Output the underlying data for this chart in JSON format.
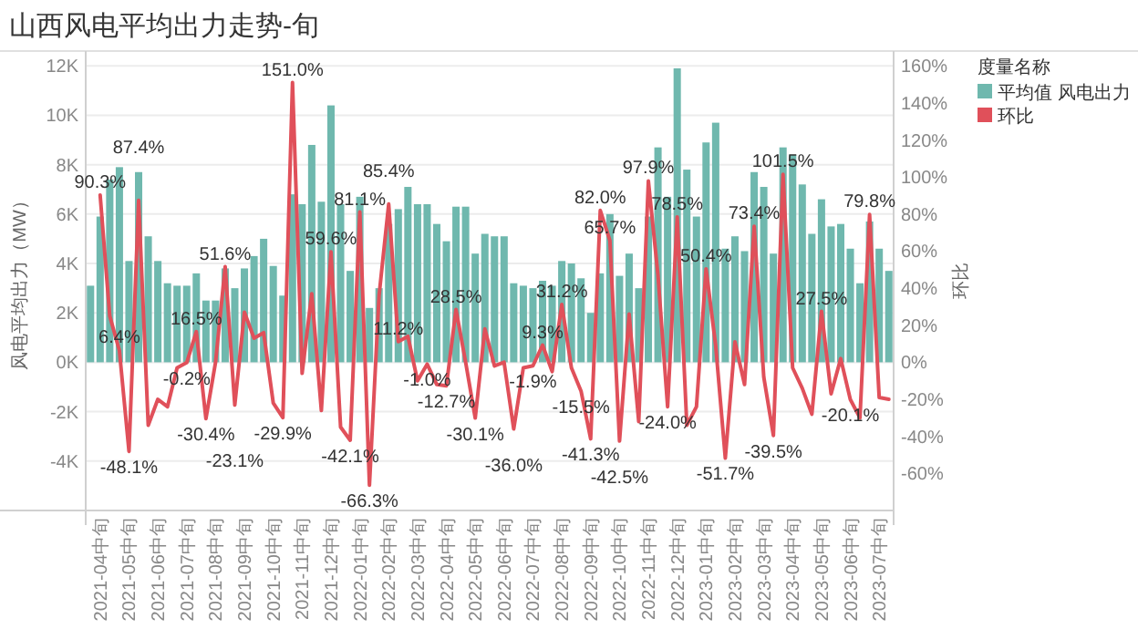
{
  "chart_data": {
    "type": "bar",
    "title": "山西风电平均出力走势-旬",
    "ylabel": "风电平均出力（MW）",
    "y2label": "环比",
    "legend_title": "度量名称",
    "legend": "top right",
    "grid": "y",
    "categories": [
      null,
      "2021-04中旬",
      null,
      null,
      "2021-05中旬",
      null,
      null,
      "2021-06中旬",
      null,
      null,
      "2021-07中旬",
      null,
      null,
      "2021-08中旬",
      null,
      null,
      "2021-09中旬",
      null,
      null,
      "2021-10中旬",
      null,
      null,
      "2021-11中旬",
      null,
      null,
      "2021-12中旬",
      null,
      null,
      "2022-01中旬",
      null,
      null,
      "2022-02中旬",
      null,
      null,
      "2022-03中旬",
      null,
      null,
      "2022-04中旬",
      null,
      null,
      "2022-05中旬",
      null,
      null,
      "2022-06中旬",
      null,
      null,
      "2022-07中旬",
      null,
      null,
      "2022-08中旬",
      null,
      null,
      "2022-09中旬",
      null,
      null,
      "2022-10中旬",
      null,
      null,
      "2022-11中旬",
      null,
      null,
      "2022-12中旬",
      null,
      null,
      "2023-01中旬",
      null,
      null,
      "2023-02中旬",
      null,
      null,
      "2023-03中旬",
      null,
      null,
      "2023-04中旬",
      null,
      null,
      "2023-05中旬",
      null,
      null,
      "2023-06中旬",
      null,
      null,
      "2023-07中旬",
      null
    ],
    "ylim": [
      -6000,
      12600
    ],
    "yticks": [
      {
        "value": -4000,
        "label": "-4K"
      },
      {
        "value": -2000,
        "label": "-2K"
      },
      {
        "value": 0,
        "label": "0K"
      },
      {
        "value": 2000,
        "label": "2K"
      },
      {
        "value": 4000,
        "label": "4K"
      },
      {
        "value": 6000,
        "label": "6K"
      },
      {
        "value": 8000,
        "label": "8K"
      },
      {
        "value": 10000,
        "label": "10K"
      },
      {
        "value": 12000,
        "label": "12K"
      }
    ],
    "y2lim": [
      -80,
      168
    ],
    "y2ticks": [
      {
        "value": -60,
        "label": "-60%"
      },
      {
        "value": -40,
        "label": "-40%"
      },
      {
        "value": -20,
        "label": "-20%"
      },
      {
        "value": 0,
        "label": "0%"
      },
      {
        "value": 20,
        "label": "20%"
      },
      {
        "value": 40,
        "label": "40%"
      },
      {
        "value": 60,
        "label": "60%"
      },
      {
        "value": 80,
        "label": "80%"
      },
      {
        "value": 100,
        "label": "100%"
      },
      {
        "value": 120,
        "label": "120%"
      },
      {
        "value": 140,
        "label": "140%"
      },
      {
        "value": 160,
        "label": "160%"
      }
    ],
    "series": [
      {
        "name": "平均值 风电出力",
        "color": "#6fb8ae",
        "values": [
          3100,
          5900,
          7400,
          7900,
          4100,
          7700,
          5100,
          4100,
          3200,
          3100,
          3100,
          3600,
          2500,
          2500,
          3800,
          3000,
          3800,
          4300,
          5000,
          3900,
          2700,
          6800,
          6400,
          8800,
          6500,
          10400,
          6400,
          3700,
          6700,
          2200,
          3000,
          5600,
          6200,
          7100,
          6400,
          6400,
          5600,
          4900,
          6300,
          6300,
          4400,
          5200,
          5100,
          5100,
          3200,
          3100,
          3000,
          3300,
          3100,
          4100,
          4000,
          3400,
          2000,
          3600,
          6000,
          3500,
          4400,
          3000,
          5900,
          8700,
          6700,
          11900,
          7800,
          5900,
          8900,
          9700,
          4600,
          5100,
          4500,
          7700,
          7100,
          4400,
          8700,
          8400,
          7200,
          5200,
          6600,
          5500,
          5600,
          4600,
          3200,
          5700,
          4600,
          3700
        ]
      },
      {
        "name": "环比",
        "type": "line",
        "axis": "y2",
        "color": "#e0505a",
        "values": [
          null,
          90.3,
          25,
          6.4,
          -48.1,
          87.4,
          -34,
          -20,
          -24,
          -3,
          -0.2,
          16.5,
          -30.4,
          0,
          51.6,
          -23.1,
          27,
          13,
          16,
          -22,
          -29.9,
          151.0,
          -6,
          37,
          -26,
          59.6,
          -35,
          -42.1,
          81.1,
          -66.3,
          36,
          85.4,
          11.2,
          14,
          -10,
          -1.0,
          -12,
          -12.7,
          28.5,
          0,
          -30.1,
          18,
          -2,
          0,
          -36.0,
          -3,
          -1.9,
          9.3,
          -5,
          31.2,
          -3,
          -15.5,
          -41.3,
          82.0,
          65.7,
          -42.5,
          26,
          -32,
          97.9,
          47,
          -24.0,
          78.5,
          -34,
          -24,
          50.4,
          9,
          -51.7,
          11,
          -12,
          73.4,
          -8,
          -39.5,
          101.5,
          -3,
          -14,
          -28,
          27.5,
          -17,
          2,
          -20.1,
          -30,
          79.8,
          -19,
          -20
        ],
        "value_labels": [
          null,
          "90.3%",
          null,
          "6.4%",
          "-48.1%",
          "87.4%",
          null,
          null,
          null,
          null,
          "-0.2%",
          "16.5%",
          "-30.4%",
          null,
          "51.6%",
          "-23.1%",
          null,
          null,
          null,
          null,
          "-29.9%",
          "151.0%",
          null,
          null,
          null,
          "59.6%",
          null,
          "-42.1%",
          "81.1%",
          "-66.3%",
          null,
          "85.4%",
          "11.2%",
          null,
          null,
          "-1.0%",
          null,
          "-12.7%",
          "28.5%",
          null,
          "-30.1%",
          null,
          null,
          null,
          "-36.0%",
          null,
          "-1.9%",
          "9.3%",
          null,
          "31.2%",
          null,
          "-15.5%",
          "-41.3%",
          "82.0%",
          "65.7%",
          "-42.5%",
          null,
          null,
          "97.9%",
          null,
          "-24.0%",
          "78.5%",
          null,
          null,
          "50.4%",
          null,
          "-51.7%",
          null,
          null,
          "73.4%",
          null,
          "-39.5%",
          "101.5%",
          null,
          null,
          null,
          "27.5%",
          null,
          null,
          "-20.1%",
          null,
          "79.8%",
          null,
          null
        ]
      }
    ]
  }
}
